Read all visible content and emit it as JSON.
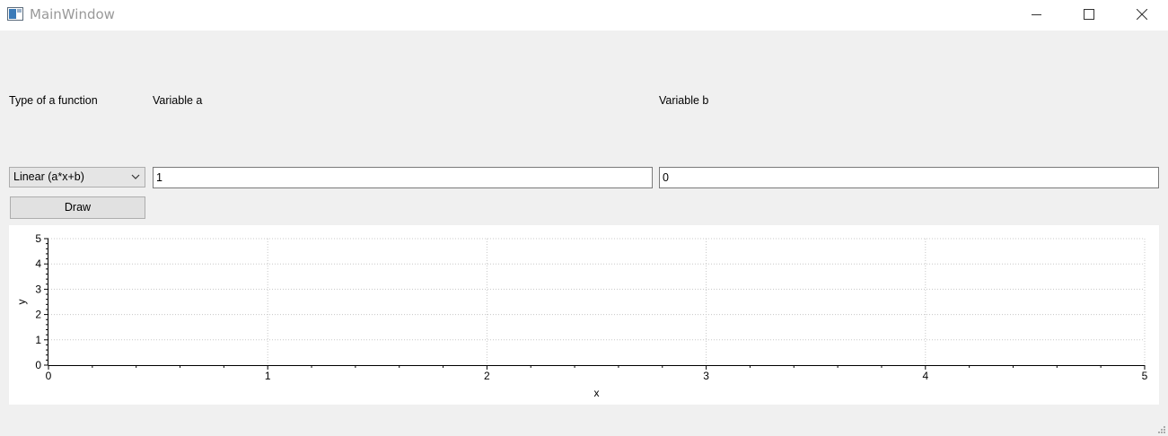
{
  "window": {
    "title": "MainWindow"
  },
  "labels": {
    "function_type": "Type of a function",
    "variable_a": "Variable a",
    "variable_b": "Variable b"
  },
  "combo": {
    "selected": "Linear (a*x+b)"
  },
  "inputs": {
    "a_value": "1",
    "b_value": "0"
  },
  "buttons": {
    "draw": "Draw"
  },
  "chart_data": {
    "type": "line",
    "xlabel": "x",
    "ylabel": "y",
    "xlim": [
      0,
      5
    ],
    "ylim": [
      0,
      5
    ],
    "x_major_ticks": [
      "0",
      "1",
      "2",
      "3",
      "4",
      "5"
    ],
    "y_major_ticks": [
      "0",
      "1",
      "2",
      "3",
      "4",
      "5"
    ],
    "grid": true,
    "series": []
  }
}
